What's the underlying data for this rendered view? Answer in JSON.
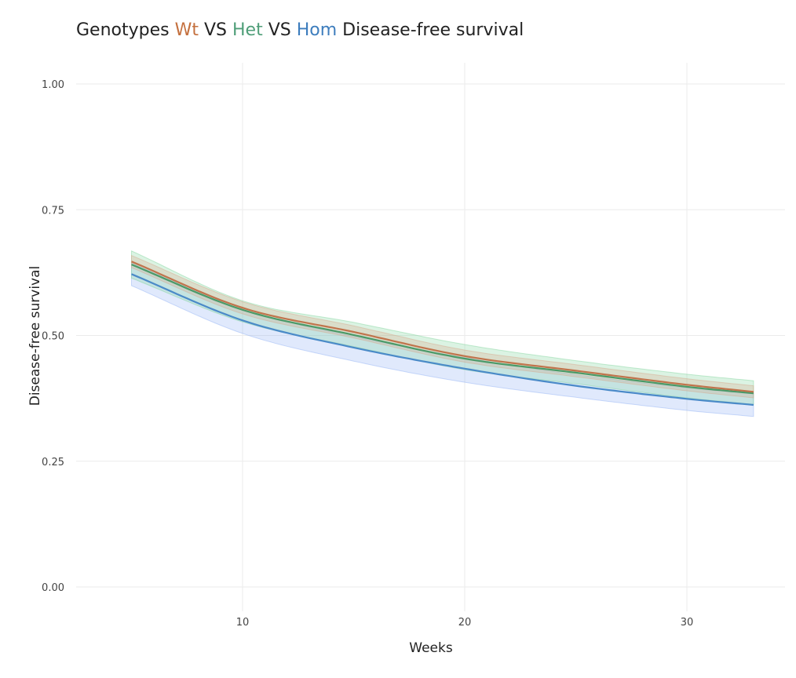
{
  "chart_data": {
    "type": "line",
    "title": {
      "parts": [
        {
          "text": "Genotypes ",
          "color": "#222222"
        },
        {
          "text": "Wt",
          "color": "#c4703e"
        },
        {
          "text": " VS ",
          "color": "#222222"
        },
        {
          "text": "Het",
          "color": "#4f9e78"
        },
        {
          "text": " VS ",
          "color": "#222222"
        },
        {
          "text": "Hom",
          "color": "#3d7dbd"
        },
        {
          "text": " Disease-free survival",
          "color": "#222222"
        }
      ]
    },
    "xlabel": "Weeks",
    "ylabel": "Disease-free survival",
    "xlim": [
      2.5,
      35.5
    ],
    "ylim": [
      -0.03,
      1.03
    ],
    "xticks": [
      10,
      20,
      30
    ],
    "xtick_labels": [
      "10",
      "20",
      "30"
    ],
    "yticks": [
      0,
      0.25,
      0.5,
      0.75,
      1.0
    ],
    "ytick_labels": [
      "0.00",
      "0.25",
      "0.50",
      "0.75",
      "1.00"
    ],
    "grid": true,
    "x": [
      5,
      10,
      15,
      20,
      25,
      30,
      33
    ],
    "series": [
      {
        "name": "Het",
        "line_color": "#4a9a68",
        "band_color": "#7dd39a",
        "values": [
          0.641,
          0.551,
          0.501,
          0.454,
          0.426,
          0.398,
          0.385
        ],
        "lower": [
          0.614,
          0.527,
          0.478,
          0.432,
          0.404,
          0.376,
          0.363
        ],
        "upper": [
          0.668,
          0.569,
          0.526,
          0.482,
          0.45,
          0.423,
          0.41
        ]
      },
      {
        "name": "Wt",
        "line_color": "#c0744c",
        "band_color": "#d7a48a",
        "values": [
          0.647,
          0.555,
          0.507,
          0.459,
          0.43,
          0.402,
          0.388
        ],
        "lower": [
          0.635,
          0.543,
          0.495,
          0.447,
          0.418,
          0.39,
          0.376
        ],
        "upper": [
          0.659,
          0.567,
          0.519,
          0.471,
          0.442,
          0.414,
          0.4
        ]
      },
      {
        "name": "Hom",
        "line_color": "#4a8ac8",
        "band_color": "#8fb0f5",
        "values": [
          0.622,
          0.53,
          0.476,
          0.434,
          0.4,
          0.374,
          0.362
        ],
        "lower": [
          0.599,
          0.504,
          0.449,
          0.407,
          0.377,
          0.351,
          0.339
        ],
        "upper": [
          0.644,
          0.552,
          0.498,
          0.456,
          0.422,
          0.396,
          0.384
        ]
      }
    ]
  }
}
